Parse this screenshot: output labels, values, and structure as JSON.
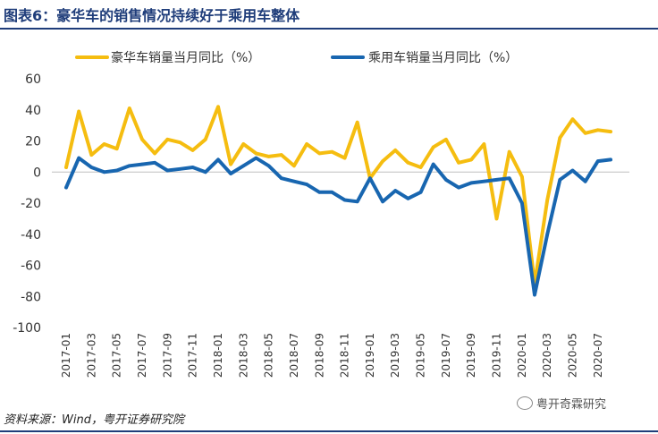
{
  "header": {
    "title": "图表6：豪华车的销售情况持续好于乘用车整体"
  },
  "footer": {
    "source": "资料来源：Wind，粤开证券研究院",
    "watermark": "粤开奇霖研究"
  },
  "colors": {
    "title": "#1f3d7a",
    "luxury": "#f5bd10",
    "passenger": "#1866b0"
  },
  "chart_data": {
    "type": "line",
    "title": "",
    "xlabel": "",
    "ylabel": "",
    "ylim": [
      -100,
      60
    ],
    "yticks": [
      60,
      40,
      20,
      0,
      -20,
      -40,
      -60,
      -80,
      -100
    ],
    "legend_position": "top",
    "grid": false,
    "x": [
      "2017-01",
      "2017-02",
      "2017-03",
      "2017-04",
      "2017-05",
      "2017-06",
      "2017-07",
      "2017-08",
      "2017-09",
      "2017-10",
      "2017-11",
      "2017-12",
      "2018-01",
      "2018-02",
      "2018-03",
      "2018-04",
      "2018-05",
      "2018-06",
      "2018-07",
      "2018-08",
      "2018-09",
      "2018-10",
      "2018-11",
      "2018-12",
      "2019-01",
      "2019-02",
      "2019-03",
      "2019-04",
      "2019-05",
      "2019-06",
      "2019-07",
      "2019-08",
      "2019-09",
      "2019-10",
      "2019-11",
      "2019-12",
      "2020-01",
      "2020-02",
      "2020-03",
      "2020-04",
      "2020-05",
      "2020-06",
      "2020-07",
      "2020-08"
    ],
    "x_tick_labels": [
      "2017-01",
      "2017-03",
      "2017-05",
      "2017-07",
      "2017-09",
      "2017-11",
      "2018-01",
      "2018-03",
      "2018-05",
      "2018-07",
      "2018-09",
      "2018-11",
      "2019-01",
      "2019-03",
      "2019-05",
      "2019-07",
      "2019-09",
      "2019-11",
      "2020-01",
      "2020-03",
      "2020-05",
      "2020-07"
    ],
    "series": [
      {
        "name": "豪华车销量当月同比（%）",
        "values": [
          3,
          39,
          11,
          18,
          15,
          41,
          21,
          12,
          21,
          19,
          14,
          21,
          42,
          5,
          18,
          12,
          10,
          11,
          4,
          18,
          12,
          13,
          9,
          32,
          -4,
          7,
          14,
          6,
          3,
          16,
          21,
          6,
          8,
          18,
          -30,
          13,
          -3,
          -72,
          -18,
          22,
          34,
          25,
          27,
          26
        ]
      },
      {
        "name": "乘用车销量当月同比（%）",
        "values": [
          -10,
          9,
          3,
          0,
          1,
          4,
          5,
          6,
          1,
          2,
          3,
          0,
          8,
          -1,
          4,
          9,
          4,
          -4,
          -6,
          -8,
          -13,
          -13,
          -18,
          -19,
          -4,
          -19,
          -12,
          -17,
          -13,
          5,
          -5,
          -10,
          -7,
          -6,
          -5,
          -4,
          -20,
          -79,
          -40,
          -5,
          1,
          -6,
          7,
          8
        ]
      }
    ]
  }
}
